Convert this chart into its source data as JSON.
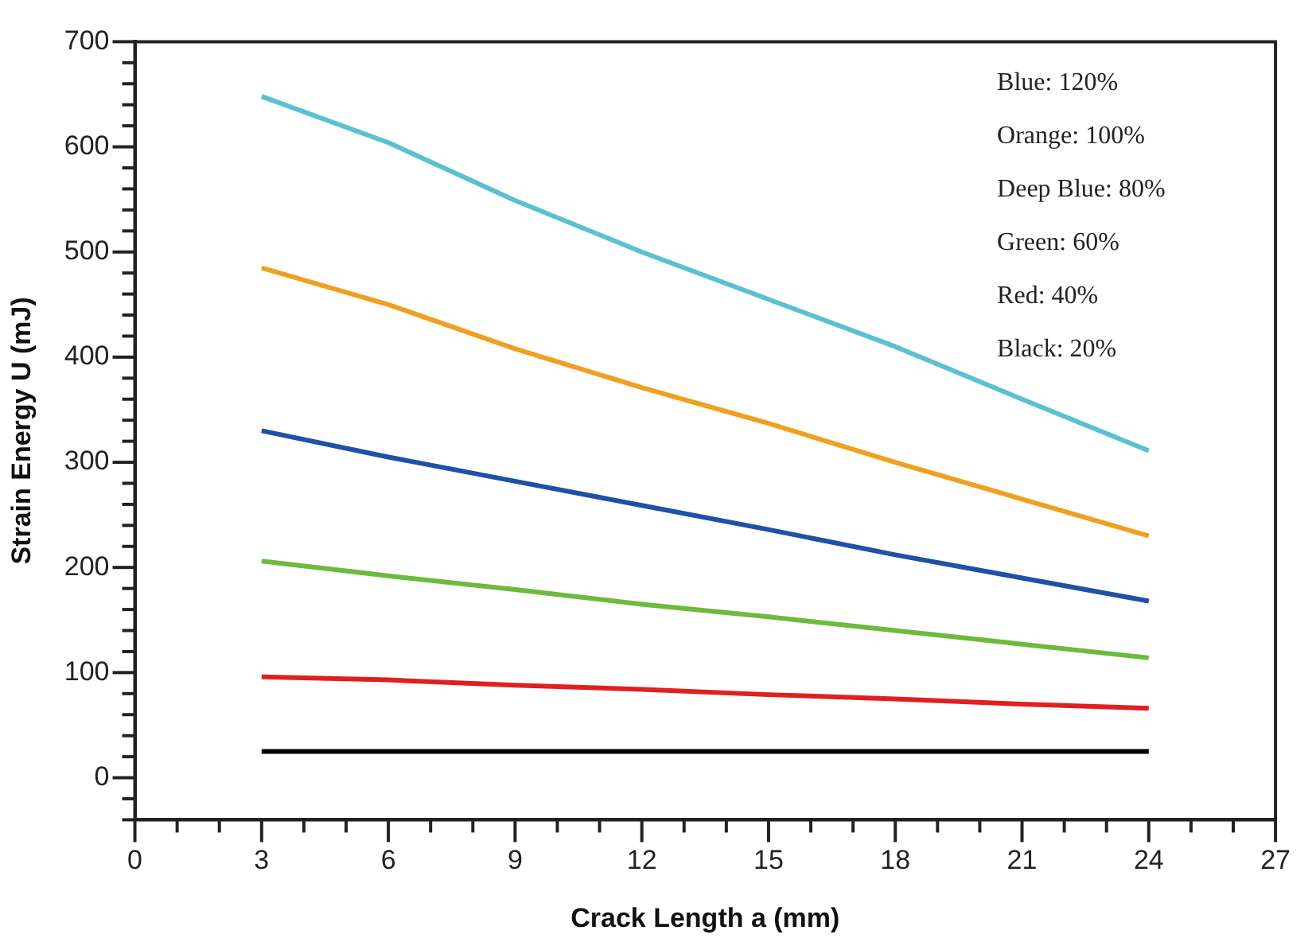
{
  "chart_data": {
    "type": "line",
    "xlabel": "Crack Length a (mm)",
    "ylabel": "Strain Energy U (mJ)",
    "x": [
      3,
      6,
      9,
      12,
      15,
      18,
      21,
      24
    ],
    "series": [
      {
        "color": "#5bc0d0",
        "values": [
          648,
          604,
          549,
          500,
          455,
          410,
          360,
          311
        ]
      },
      {
        "color": "#f0a020",
        "values": [
          485,
          450,
          408,
          371,
          337,
          300,
          265,
          230
        ]
      },
      {
        "color": "#2050a8",
        "values": [
          330,
          305,
          282,
          259,
          236,
          212,
          190,
          168
        ]
      },
      {
        "color": "#6cbb3c",
        "values": [
          206,
          192,
          179,
          165,
          153,
          140,
          127,
          114
        ]
      },
      {
        "color": "#e02020",
        "values": [
          96,
          93,
          88,
          84,
          79,
          75,
          70,
          66
        ]
      },
      {
        "color": "#000000",
        "values": [
          25,
          25,
          25,
          25,
          25,
          25,
          25,
          25
        ]
      }
    ],
    "xlim": [
      0,
      27
    ],
    "xticks": [
      0,
      {
        "value": 1,
        "label": null
      },
      {
        "value": 2,
        "label": null
      },
      3,
      {
        "value": 4,
        "label": null
      },
      {
        "value": 5,
        "label": null
      },
      6,
      {
        "value": 7,
        "label": null
      },
      {
        "value": 8,
        "label": null
      },
      9,
      {
        "value": 10,
        "label": null
      },
      {
        "value": 11,
        "label": null
      },
      12,
      {
        "value": 13,
        "label": null
      },
      {
        "value": 14,
        "label": null
      },
      15,
      {
        "value": 16,
        "label": null
      },
      {
        "value": 17,
        "label": null
      },
      18,
      {
        "value": 19,
        "label": null
      },
      {
        "value": 20,
        "label": null
      },
      21,
      {
        "value": 22,
        "label": null
      },
      {
        "value": 23,
        "label": null
      },
      24,
      {
        "value": 25,
        "label": null
      },
      {
        "value": 26,
        "label": null
      },
      27
    ],
    "ylim": [
      -40,
      700
    ],
    "yticks": [
      {
        "value": -40,
        "label": null
      },
      {
        "value": -20,
        "label": null
      },
      0,
      {
        "value": 20,
        "label": null
      },
      {
        "value": 40,
        "label": null
      },
      {
        "value": 60,
        "label": null
      },
      {
        "value": 80,
        "label": null
      },
      100,
      {
        "value": 120,
        "label": null
      },
      {
        "value": 140,
        "label": null
      },
      {
        "value": 160,
        "label": null
      },
      {
        "value": 180,
        "label": null
      },
      200,
      {
        "value": 220,
        "label": null
      },
      {
        "value": 240,
        "label": null
      },
      {
        "value": 260,
        "label": null
      },
      {
        "value": 280,
        "label": null
      },
      300,
      {
        "value": 320,
        "label": null
      },
      {
        "value": 340,
        "label": null
      },
      {
        "value": 360,
        "label": null
      },
      {
        "value": 380,
        "label": null
      },
      400,
      {
        "value": 420,
        "label": null
      },
      {
        "value": 440,
        "label": null
      },
      {
        "value": 460,
        "label": null
      },
      {
        "value": 480,
        "label": null
      },
      500,
      {
        "value": 520,
        "label": null
      },
      {
        "value": 540,
        "label": null
      },
      {
        "value": 560,
        "label": null
      },
      {
        "value": 580,
        "label": null
      },
      600,
      {
        "value": 620,
        "label": null
      },
      {
        "value": 640,
        "label": null
      },
      {
        "value": 660,
        "label": null
      },
      {
        "value": 680,
        "label": null
      },
      700
    ],
    "grid": false,
    "legend": false,
    "marker": "none",
    "line_style": "solid",
    "annotations": [
      "Blue: 120%",
      "Orange: 100%",
      "Deep Blue: 80%",
      "Green: 60%",
      "Red: 40%",
      "Black: 20%"
    ]
  }
}
